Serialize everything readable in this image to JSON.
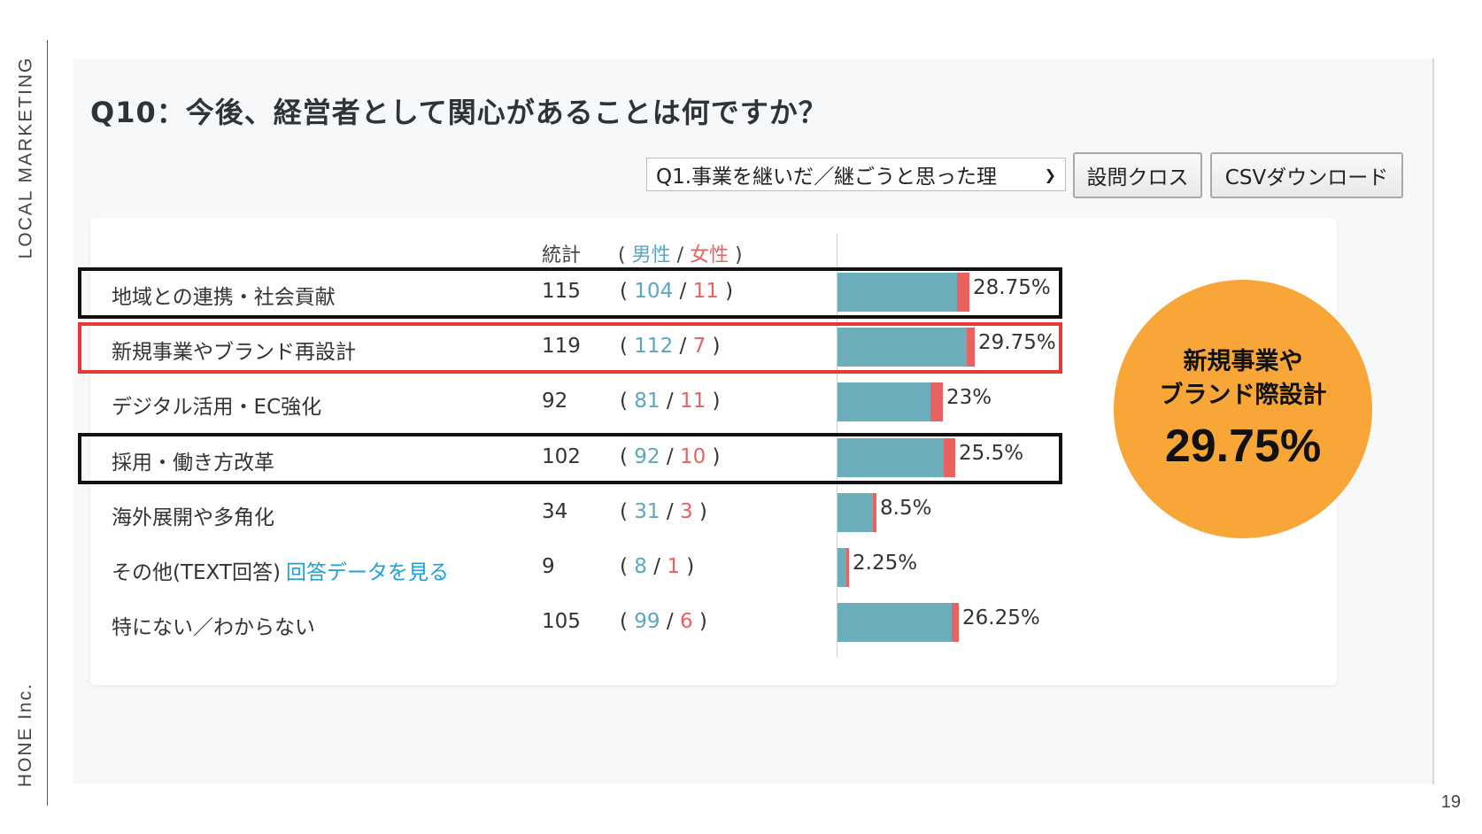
{
  "brand_rail": {
    "top_text": "LOCAL MARKETING",
    "bottom_text": "HONE Inc."
  },
  "page_number": "19",
  "question": {
    "title": "Q10：今後、経営者として関心があることは何ですか？"
  },
  "controls": {
    "cross_select_value": "Q1.事業を継いだ／継ごうと思った理",
    "cross_button": "設問クロス",
    "csv_button": "CSVダウンロード"
  },
  "table": {
    "header_total": "統計",
    "header_open": "(",
    "header_male": "男性",
    "header_sep": "/",
    "header_female": "女性",
    "header_close": ")",
    "rows": [
      {
        "label": "地域との連携・社会貢献",
        "link": "",
        "total": "115",
        "male": "104",
        "female": "11",
        "percent": "28.75%",
        "highlight": "black"
      },
      {
        "label": "新規事業やブランド再設計",
        "link": "",
        "total": "119",
        "male": "112",
        "female": "7",
        "percent": "29.75%",
        "highlight": "red"
      },
      {
        "label": "デジタル活用・EC強化",
        "link": "",
        "total": "92",
        "male": "81",
        "female": "11",
        "percent": "23%",
        "highlight": ""
      },
      {
        "label": "採用・働き方改革",
        "link": "",
        "total": "102",
        "male": "92",
        "female": "10",
        "percent": "25.5%",
        "highlight": "black"
      },
      {
        "label": "海外展開や多角化",
        "link": "",
        "total": "34",
        "male": "31",
        "female": "3",
        "percent": "8.5%",
        "highlight": ""
      },
      {
        "label": "その他(TEXT回答)",
        "link": "回答データを見る",
        "total": "9",
        "male": "8",
        "female": "1",
        "percent": "2.25%",
        "highlight": ""
      },
      {
        "label": "特にない／わからない",
        "link": "",
        "total": "105",
        "male": "99",
        "female": "6",
        "percent": "26.25%",
        "highlight": ""
      }
    ]
  },
  "callout": {
    "line1": "新規事業や",
    "line2": "ブランド際設計",
    "value": "29.75%"
  },
  "colors": {
    "male": "#6daebd",
    "female": "#e8625f",
    "callout": "#f8a637",
    "link": "#1ea0d8"
  }
}
